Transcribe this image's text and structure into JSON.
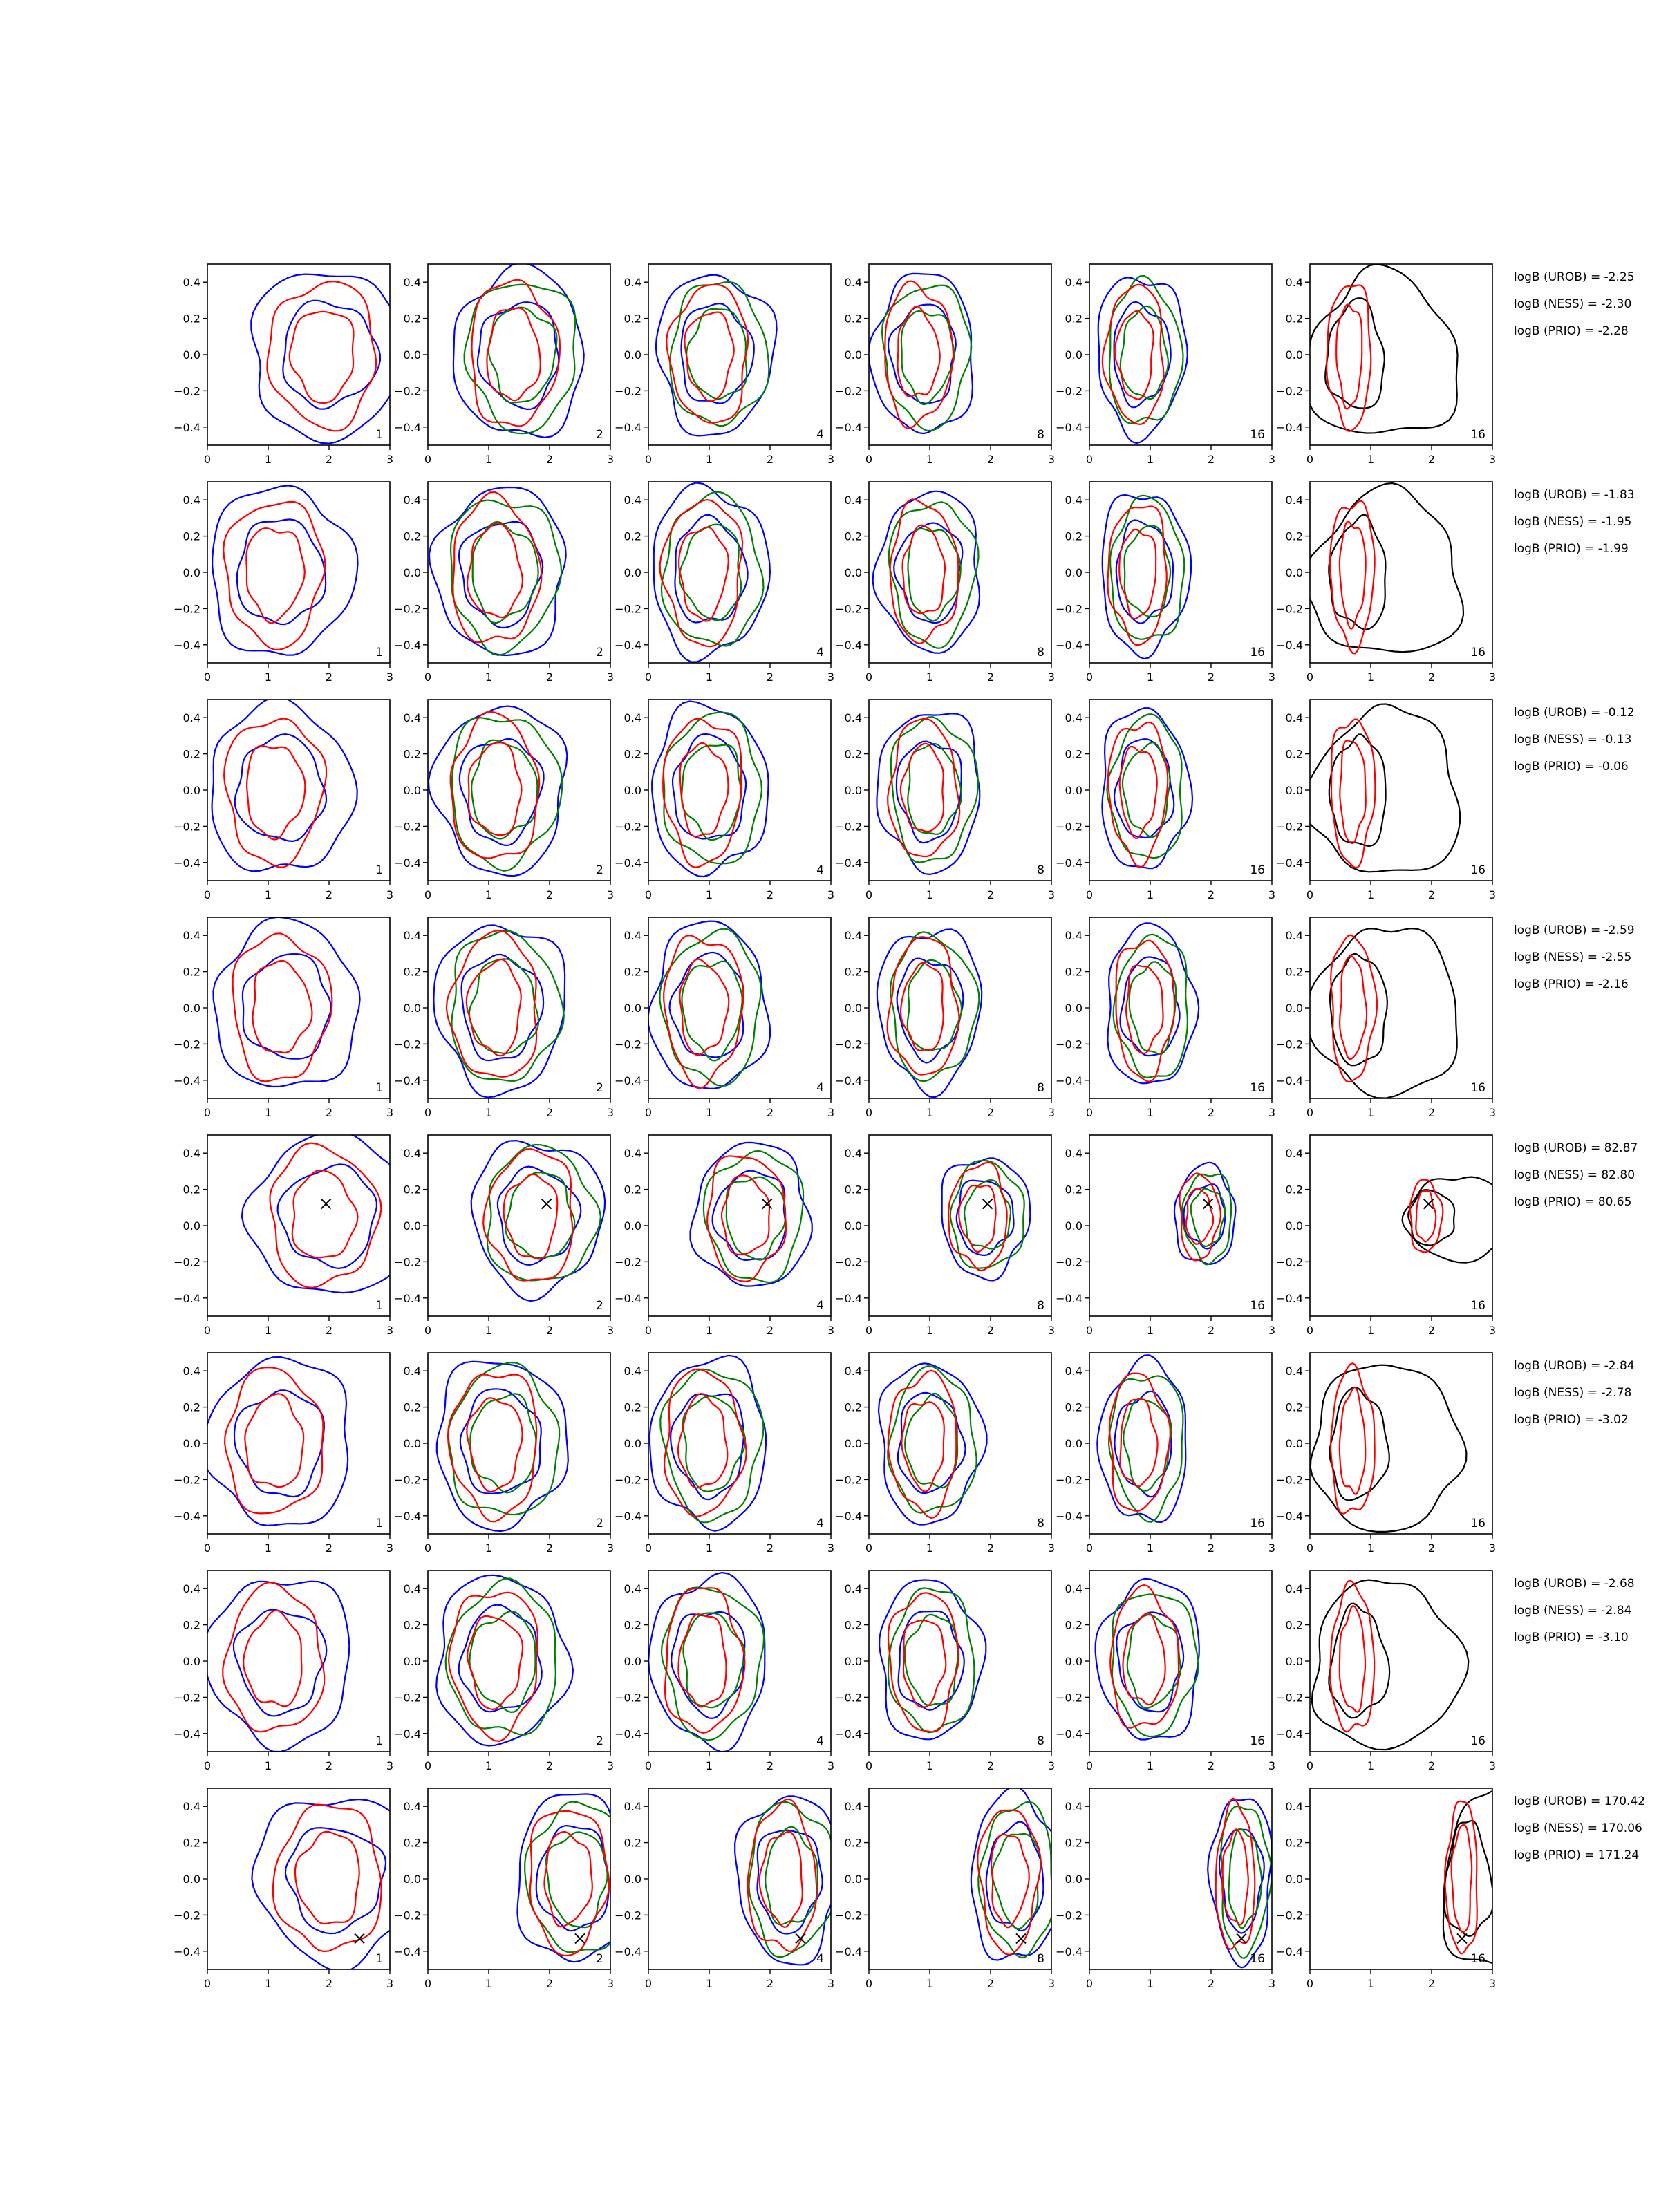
{
  "colors": {
    "urob": "#0000ff",
    "ness": "#008000",
    "prio": "#ff0000",
    "truth": "#000000"
  },
  "chart_data": {
    "type": "contour",
    "grid": false,
    "legend": "none",
    "xlim": [
      0,
      3
    ],
    "ylim": [
      -0.5,
      0.5
    ],
    "xticks": [
      "0",
      "1",
      "2",
      "3"
    ],
    "yticks": [
      "−0.4",
      "−0.2",
      "0.0",
      "0.2",
      "0.4"
    ],
    "column_labels": [
      "1",
      "2",
      "4",
      "8",
      "16",
      "16"
    ],
    "rows": [
      {
        "logB": [
          "logB (UROB) = -2.25",
          "logB (NESS) = -2.30",
          "logB (PRIO) = -2.28"
        ],
        "cx": [
          1.9,
          1.4,
          1.0,
          0.8,
          0.75,
          0.65
        ],
        "cy": [
          0.0,
          0.0,
          0.0,
          0.0,
          0.0,
          0.0
        ],
        "sx": [
          1.0,
          0.8,
          0.7,
          0.6,
          0.5,
          0.3
        ],
        "sy": [
          0.42,
          0.42,
          0.4,
          0.4,
          0.4,
          0.4
        ],
        "marker": null
      },
      {
        "logB": [
          "logB (UROB) = -1.83",
          "logB (NESS) = -1.95",
          "logB (PRIO) = -1.99"
        ],
        "cx": [
          1.1,
          1.1,
          0.9,
          0.9,
          0.8,
          0.7
        ],
        "cy": [
          0.0,
          0.0,
          0.0,
          0.0,
          0.0,
          0.0
        ],
        "sx": [
          0.9,
          0.8,
          0.7,
          0.6,
          0.5,
          0.3
        ],
        "sy": [
          0.42,
          0.42,
          0.42,
          0.4,
          0.4,
          0.4
        ],
        "marker": null
      },
      {
        "logB": [
          "logB (UROB) = -0.12",
          "logB (NESS) = -0.13",
          "logB (PRIO) = -0.06"
        ],
        "cx": [
          1.1,
          1.1,
          0.9,
          0.9,
          0.8,
          0.7
        ],
        "cy": [
          0.0,
          0.0,
          0.0,
          0.0,
          0.0,
          0.0
        ],
        "sx": [
          0.9,
          0.8,
          0.7,
          0.6,
          0.5,
          0.3
        ],
        "sy": [
          0.42,
          0.42,
          0.42,
          0.4,
          0.4,
          0.4
        ],
        "marker": null
      },
      {
        "logB": [
          "logB (UROB) = -2.59",
          "logB (NESS) = -2.55",
          "logB (PRIO) = -2.16"
        ],
        "cx": [
          1.2,
          1.1,
          0.9,
          0.9,
          0.9,
          0.7
        ],
        "cy": [
          0.0,
          0.0,
          0.0,
          0.0,
          0.0,
          0.0
        ],
        "sx": [
          0.9,
          0.8,
          0.7,
          0.6,
          0.5,
          0.3
        ],
        "sy": [
          0.42,
          0.42,
          0.42,
          0.4,
          0.4,
          0.4
        ],
        "marker": null
      },
      {
        "logB": [
          "logB (UROB) = 82.87",
          "logB (NESS) = 82.80",
          "logB (PRIO) = 80.65"
        ],
        "cx": [
          1.9,
          1.7,
          1.6,
          1.8,
          1.8,
          1.9
        ],
        "cy": [
          0.05,
          0.05,
          0.05,
          0.05,
          0.05,
          0.05
        ],
        "sx": [
          1.0,
          0.8,
          0.7,
          0.5,
          0.3,
          0.2
        ],
        "sy": [
          0.4,
          0.38,
          0.36,
          0.3,
          0.25,
          0.2
        ],
        "marker": [
          1.95,
          0.12
        ]
      },
      {
        "logB": [
          "logB (UROB) = -2.84",
          "logB (NESS) = -2.78",
          "logB (PRIO) = -3.02"
        ],
        "cx": [
          1.1,
          1.1,
          0.9,
          0.9,
          0.8,
          0.7
        ],
        "cy": [
          0.0,
          0.0,
          0.0,
          0.0,
          0.0,
          0.0
        ],
        "sx": [
          0.9,
          0.8,
          0.7,
          0.6,
          0.5,
          0.3
        ],
        "sy": [
          0.42,
          0.42,
          0.42,
          0.4,
          0.4,
          0.4
        ],
        "marker": null
      },
      {
        "logB": [
          "logB (UROB) = -2.68",
          "logB (NESS) = -2.84",
          "logB (PRIO) = -3.10"
        ],
        "cx": [
          1.1,
          1.1,
          0.9,
          0.9,
          0.9,
          0.7
        ],
        "cy": [
          0.0,
          0.0,
          0.0,
          0.0,
          0.0,
          0.0
        ],
        "sx": [
          0.9,
          0.8,
          0.7,
          0.6,
          0.6,
          0.3
        ],
        "sy": [
          0.42,
          0.42,
          0.42,
          0.4,
          0.4,
          0.4
        ],
        "marker": null
      },
      {
        "logB": [
          "logB (UROB) = 170.42",
          "logB (NESS) = 170.06",
          "logB (PRIO) = 171.24"
        ],
        "cx": [
          2.0,
          2.3,
          2.2,
          2.3,
          2.4,
          2.5
        ],
        "cy": [
          0.0,
          0.0,
          0.0,
          0.0,
          0.0,
          0.0
        ],
        "sx": [
          1.0,
          0.7,
          0.6,
          0.5,
          0.3,
          0.2
        ],
        "sy": [
          0.42,
          0.42,
          0.42,
          0.42,
          0.42,
          0.42
        ],
        "marker": [
          2.5,
          -0.33
        ]
      }
    ]
  }
}
